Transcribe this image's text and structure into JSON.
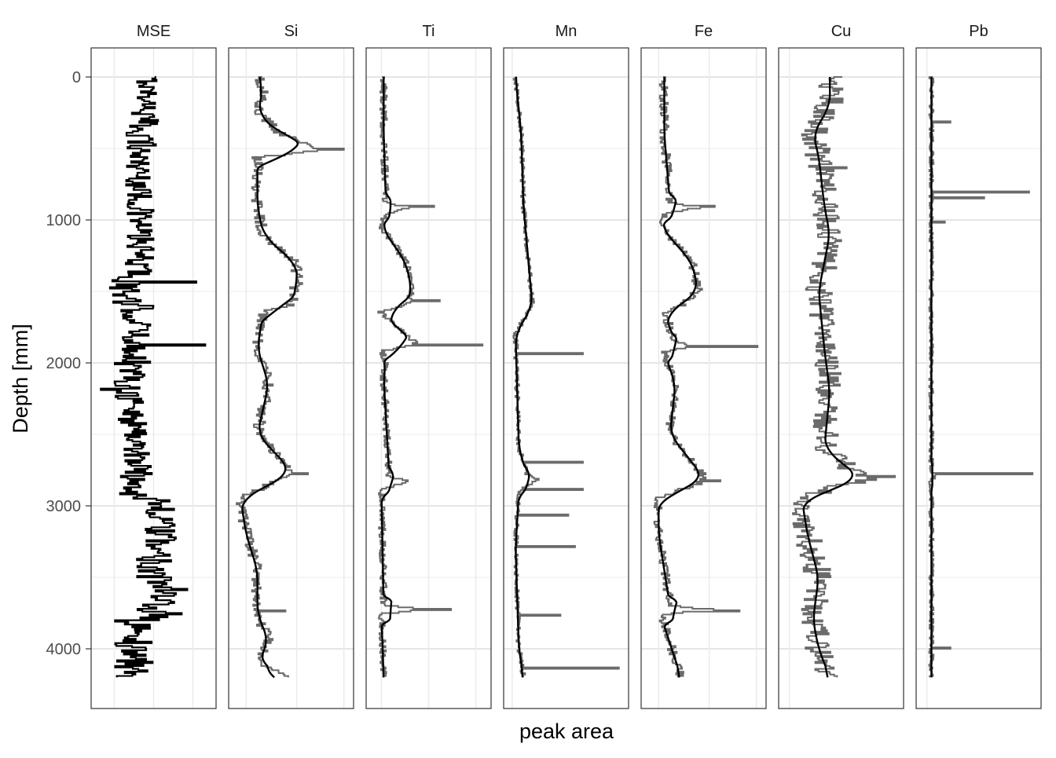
{
  "chart_data": {
    "type": "line",
    "xlabel": "peak area",
    "ylabel": "Depth [mm]",
    "y_ticks": [
      0,
      1000,
      2000,
      3000,
      4000
    ],
    "ylim": [
      -200,
      4400
    ],
    "y_reversed": true,
    "grid": true,
    "depth_step_mm": 10,
    "panels": [
      {
        "name": "MSE",
        "line_color": "#000000",
        "raw_depth_range": [
          0,
          4200
        ],
        "raw_range": [
          0.0,
          1.0
        ],
        "smooth": false,
        "segments": [
          {
            "d0": 0,
            "d1": 250,
            "lo": 0.35,
            "hi": 0.55
          },
          {
            "d0": 250,
            "d1": 500,
            "lo": 0.25,
            "hi": 0.55
          },
          {
            "d0": 500,
            "d1": 1400,
            "lo": 0.25,
            "hi": 0.5
          },
          {
            "d0": 1400,
            "d1": 1600,
            "lo": 0.1,
            "hi": 0.4
          },
          {
            "d0": 1600,
            "d1": 2000,
            "lo": 0.2,
            "hi": 0.5
          },
          {
            "d0": 2000,
            "d1": 2400,
            "lo": 0.15,
            "hi": 0.45
          },
          {
            "d0": 2400,
            "d1": 2950,
            "lo": 0.2,
            "hi": 0.5
          },
          {
            "d0": 2950,
            "d1": 3300,
            "lo": 0.4,
            "hi": 0.7
          },
          {
            "d0": 3300,
            "d1": 3800,
            "lo": 0.35,
            "hi": 0.7
          },
          {
            "d0": 3800,
            "d1": 4200,
            "lo": 0.15,
            "hi": 0.5
          }
        ],
        "spikes": [
          {
            "depth": 1440,
            "value": 0.88
          },
          {
            "depth": 1880,
            "value": 0.96
          },
          {
            "depth": 2190,
            "value": 0.03
          },
          {
            "depth": 3590,
            "value": 0.8
          },
          {
            "depth": 3760,
            "value": 0.75
          }
        ],
        "grid_x": [
          0.15,
          0.5,
          0.85
        ]
      },
      {
        "name": "Si",
        "line_color": "#6b6b6b",
        "smooth_color": "#000000",
        "raw_depth_range": [
          0,
          4200
        ],
        "raw_range": [
          0.0,
          1.0
        ],
        "noise": 0.05,
        "smooth": true,
        "baseline": [
          [
            0,
            0.2
          ],
          [
            100,
            0.25
          ],
          [
            250,
            0.2
          ],
          [
            400,
            0.4
          ],
          [
            470,
            0.65
          ],
          [
            520,
            0.7
          ],
          [
            570,
            0.2
          ],
          [
            900,
            0.2
          ],
          [
            1100,
            0.25
          ],
          [
            1250,
            0.45
          ],
          [
            1300,
            0.55
          ],
          [
            1450,
            0.55
          ],
          [
            1600,
            0.5
          ],
          [
            1650,
            0.25
          ],
          [
            1900,
            0.2
          ],
          [
            2150,
            0.3
          ],
          [
            2500,
            0.2
          ],
          [
            2750,
            0.5
          ],
          [
            2800,
            0.45
          ],
          [
            2950,
            0.05
          ],
          [
            3200,
            0.1
          ],
          [
            3450,
            0.2
          ],
          [
            3600,
            0.2
          ],
          [
            3750,
            0.2
          ],
          [
            3950,
            0.3
          ],
          [
            4100,
            0.2
          ],
          [
            4200,
            0.45
          ]
        ],
        "spikes": [
          {
            "depth": 510,
            "value": 0.97
          },
          {
            "depth": 2780,
            "value": 0.65
          },
          {
            "depth": 3740,
            "value": 0.45
          }
        ],
        "grid_x": [
          0.1,
          0.55,
          0.97
        ]
      },
      {
        "name": "Ti",
        "line_color": "#6b6b6b",
        "smooth_color": "#000000",
        "raw_depth_range": [
          0,
          4200
        ],
        "raw_range": [
          0.0,
          1.0
        ],
        "noise": 0.03,
        "smooth": true,
        "baseline": [
          [
            0,
            0.1
          ],
          [
            400,
            0.1
          ],
          [
            880,
            0.12
          ],
          [
            920,
            0.3
          ],
          [
            960,
            0.12
          ],
          [
            1050,
            0.08
          ],
          [
            1300,
            0.3
          ],
          [
            1500,
            0.35
          ],
          [
            1600,
            0.3
          ],
          [
            1650,
            0.08
          ],
          [
            1880,
            0.4
          ],
          [
            1920,
            0.08
          ],
          [
            2000,
            0.12
          ],
          [
            2100,
            0.1
          ],
          [
            2800,
            0.15
          ],
          [
            2830,
            0.3
          ],
          [
            2900,
            0.08
          ],
          [
            3700,
            0.1
          ],
          [
            3730,
            0.5
          ],
          [
            3760,
            0.08
          ],
          [
            4200,
            0.1
          ]
        ],
        "spikes": [
          {
            "depth": 910,
            "value": 0.55
          },
          {
            "depth": 1570,
            "value": 0.6
          },
          {
            "depth": 1880,
            "value": 0.98
          },
          {
            "depth": 3730,
            "value": 0.7
          }
        ],
        "grid_x": [
          0.08,
          0.5,
          0.92
        ]
      },
      {
        "name": "Mn",
        "line_color": "#6b6b6b",
        "smooth_color": "#000000",
        "raw_depth_range": [
          0,
          4200
        ],
        "raw_range": [
          0.0,
          1.0
        ],
        "noise": 0.02,
        "smooth": true,
        "baseline": [
          [
            0,
            0.05
          ],
          [
            400,
            0.1
          ],
          [
            900,
            0.12
          ],
          [
            1600,
            0.2
          ],
          [
            1800,
            0.05
          ],
          [
            2600,
            0.08
          ],
          [
            2780,
            0.15
          ],
          [
            2820,
            0.25
          ],
          [
            2900,
            0.08
          ],
          [
            3300,
            0.05
          ],
          [
            4000,
            0.08
          ],
          [
            4200,
            0.12
          ]
        ],
        "spikes": [
          {
            "depth": 1940,
            "value": 0.65
          },
          {
            "depth": 2700,
            "value": 0.65
          },
          {
            "depth": 2890,
            "value": 0.65
          },
          {
            "depth": 3070,
            "value": 0.52
          },
          {
            "depth": 3290,
            "value": 0.58
          },
          {
            "depth": 3770,
            "value": 0.45
          },
          {
            "depth": 4140,
            "value": 0.97
          }
        ],
        "grid_x": [
          0.02
        ]
      },
      {
        "name": "Fe",
        "line_color": "#6b6b6b",
        "smooth_color": "#000000",
        "raw_depth_range": [
          0,
          4200
        ],
        "raw_range": [
          0.0,
          1.0
        ],
        "noise": 0.04,
        "smooth": true,
        "baseline": [
          [
            0,
            0.15
          ],
          [
            400,
            0.15
          ],
          [
            880,
            0.2
          ],
          [
            920,
            0.45
          ],
          [
            960,
            0.15
          ],
          [
            1050,
            0.12
          ],
          [
            1300,
            0.4
          ],
          [
            1500,
            0.45
          ],
          [
            1600,
            0.3
          ],
          [
            1650,
            0.15
          ],
          [
            1860,
            0.25
          ],
          [
            1890,
            0.4
          ],
          [
            1930,
            0.15
          ],
          [
            2150,
            0.25
          ],
          [
            2500,
            0.2
          ],
          [
            2800,
            0.5
          ],
          [
            2850,
            0.45
          ],
          [
            2950,
            0.1
          ],
          [
            3200,
            0.1
          ],
          [
            3700,
            0.2
          ],
          [
            3730,
            0.55
          ],
          [
            3770,
            0.12
          ],
          [
            4200,
            0.3
          ]
        ],
        "spikes": [
          {
            "depth": 910,
            "value": 0.6
          },
          {
            "depth": 1890,
            "value": 0.98
          },
          {
            "depth": 2830,
            "value": 0.65
          },
          {
            "depth": 3740,
            "value": 0.82
          }
        ],
        "grid_x": [
          0.1,
          0.55,
          0.97
        ]
      },
      {
        "name": "Cu",
        "line_color": "#6b6b6b",
        "smooth_color": "#000000",
        "raw_depth_range": [
          0,
          4200
        ],
        "raw_range": [
          0.0,
          1.0
        ],
        "noise": 0.12,
        "smooth": true,
        "baseline": [
          [
            0,
            0.4
          ],
          [
            200,
            0.4
          ],
          [
            400,
            0.25
          ],
          [
            550,
            0.3
          ],
          [
            900,
            0.35
          ],
          [
            1100,
            0.4
          ],
          [
            1300,
            0.35
          ],
          [
            1500,
            0.3
          ],
          [
            1900,
            0.35
          ],
          [
            2200,
            0.4
          ],
          [
            2600,
            0.35
          ],
          [
            2760,
            0.6
          ],
          [
            2820,
            0.7
          ],
          [
            2950,
            0.15
          ],
          [
            3200,
            0.2
          ],
          [
            3500,
            0.3
          ],
          [
            3800,
            0.25
          ],
          [
            4000,
            0.3
          ],
          [
            4200,
            0.4
          ]
        ],
        "spikes": [
          {
            "depth": 2800,
            "value": 0.98
          },
          {
            "depth": 640,
            "value": 0.55
          }
        ],
        "grid_x": [
          0.04
        ]
      },
      {
        "name": "Pb",
        "line_color": "#6b6b6b",
        "smooth_color": "#000000",
        "raw_depth_range": [
          0,
          4200
        ],
        "raw_range": [
          0.0,
          1.0
        ],
        "noise": 0.02,
        "smooth": true,
        "baseline": [
          [
            0,
            0.08
          ],
          [
            2760,
            0.08
          ],
          [
            2790,
            0.12
          ],
          [
            2830,
            0.08
          ],
          [
            4200,
            0.08
          ]
        ],
        "spikes": [
          {
            "depth": 320,
            "value": 0.25
          },
          {
            "depth": 810,
            "value": 0.95
          },
          {
            "depth": 850,
            "value": 0.55
          },
          {
            "depth": 1020,
            "value": 0.2
          },
          {
            "depth": 2780,
            "value": 0.98
          },
          {
            "depth": 4000,
            "value": 0.25
          }
        ],
        "grid_x": [
          0.04
        ]
      }
    ]
  }
}
